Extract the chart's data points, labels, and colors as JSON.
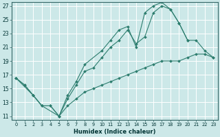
{
  "xlabel": "Humidex (Indice chaleur)",
  "bg_color": "#cce8e8",
  "grid_color": "#b8d8d8",
  "line_color": "#2d7d6e",
  "xlim": [
    -0.5,
    23.5
  ],
  "ylim": [
    10.5,
    27.5
  ],
  "xticks": [
    0,
    1,
    2,
    3,
    4,
    5,
    6,
    7,
    8,
    9,
    10,
    11,
    12,
    13,
    14,
    15,
    16,
    17,
    18,
    19,
    20,
    21,
    22,
    23
  ],
  "yticks": [
    11,
    13,
    15,
    17,
    19,
    21,
    23,
    25,
    27
  ],
  "line1_x": [
    0,
    1,
    2,
    3,
    4,
    5,
    6,
    7,
    8,
    9,
    10,
    11,
    12,
    13,
    14,
    15,
    16,
    17,
    18,
    19,
    20,
    21,
    22,
    23
  ],
  "line1_y": [
    16.5,
    15.5,
    14.0,
    12.5,
    12.5,
    11.0,
    13.5,
    15.5,
    17.5,
    18.0,
    19.5,
    21.0,
    22.0,
    23.5,
    21.5,
    22.5,
    26.0,
    27.0,
    26.5,
    24.5,
    22.0,
    22.0,
    20.5,
    19.5
  ],
  "line2_x": [
    0,
    2,
    3,
    5,
    6,
    7,
    8,
    10,
    11,
    12,
    13,
    14,
    15,
    16,
    17,
    18,
    19,
    20
  ],
  "line2_y": [
    16.5,
    14.0,
    12.5,
    11.0,
    14.0,
    16.0,
    18.5,
    20.5,
    22.0,
    23.5,
    24.0,
    21.0,
    26.0,
    27.0,
    27.5,
    26.5,
    24.5,
    22.0
  ],
  "line3_x": [
    0,
    1,
    2,
    3,
    4,
    5,
    6,
    7,
    8,
    9,
    10,
    11,
    12,
    13,
    14,
    15,
    16,
    17,
    18,
    19,
    20,
    21,
    22,
    23
  ],
  "line3_y": [
    16.5,
    15.5,
    14.0,
    12.5,
    12.5,
    11.0,
    12.5,
    13.5,
    14.5,
    15.0,
    15.5,
    16.0,
    16.5,
    17.0,
    17.5,
    18.0,
    18.5,
    19.0,
    19.0,
    19.0,
    19.5,
    20.0,
    20.0,
    19.5
  ]
}
